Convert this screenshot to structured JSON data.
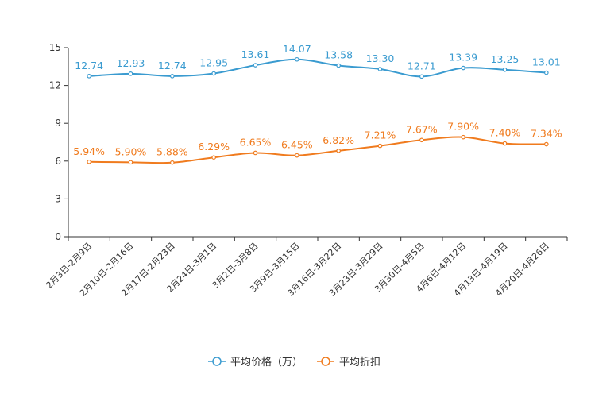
{
  "chart_data": {
    "type": "line",
    "categories": [
      "2月3日-2月9日",
      "2月10日-2月16日",
      "2月17日-2月23日",
      "2月24日-3月1日",
      "3月2日-3月8日",
      "3月9日-3月15日",
      "3月16日-3月22日",
      "3月23日-3月29日",
      "3月30日-4月5日",
      "4月6日-4月12日",
      "4月13日-4月19日",
      "4月20日-4月26日"
    ],
    "ylim": [
      0,
      15
    ],
    "yticks": [
      "0",
      "3",
      "6",
      "9",
      "12",
      "15"
    ],
    "series": [
      {
        "name": "平均价格（万）",
        "color": "#3a9bd0",
        "values": [
          12.74,
          12.93,
          12.74,
          12.95,
          13.61,
          14.07,
          13.58,
          13.3,
          12.71,
          13.39,
          13.25,
          13.01
        ],
        "labels": [
          "12.74",
          "12.93",
          "12.74",
          "12.95",
          "13.61",
          "14.07",
          "13.58",
          "13.30",
          "12.71",
          "13.39",
          "13.25",
          "13.01"
        ]
      },
      {
        "name": "平均折扣",
        "color": "#f07b1e",
        "values": [
          5.94,
          5.9,
          5.88,
          6.29,
          6.65,
          6.45,
          6.82,
          7.21,
          7.67,
          7.9,
          7.4,
          7.34
        ],
        "labels": [
          "5.94%",
          "5.90%",
          "5.88%",
          "6.29%",
          "6.65%",
          "6.45%",
          "6.82%",
          "7.21%",
          "7.67%",
          "7.90%",
          "7.40%",
          "7.34%"
        ]
      }
    ],
    "legend": {
      "position": "bottom-center"
    }
  }
}
